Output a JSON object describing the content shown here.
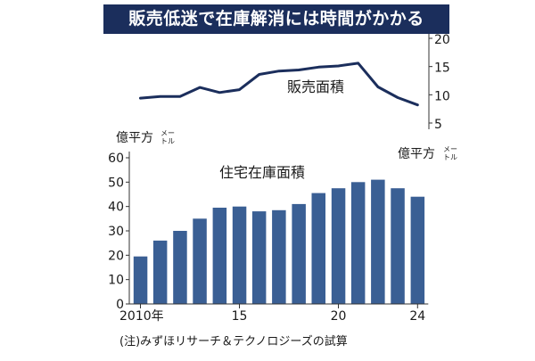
{
  "title": "販売低迷で在庫解消には時間がかかる",
  "footnote": "(注)みずほリサーチ＆テクノロジーズの試算",
  "chart_data": [
    {
      "type": "line",
      "series_name": "販売面積",
      "unit": "億平方メートル",
      "x": [
        2010,
        2011,
        2012,
        2013,
        2014,
        2015,
        2016,
        2017,
        2018,
        2019,
        2020,
        2021,
        2022,
        2023,
        2024
      ],
      "values": [
        9.4,
        9.7,
        9.7,
        11.3,
        10.4,
        10.9,
        13.6,
        14.2,
        14.4,
        14.9,
        15.1,
        15.6,
        11.4,
        9.5,
        8.2
      ],
      "ylim": [
        5,
        20
      ],
      "yticks": [
        "5",
        "10",
        "15",
        "20"
      ],
      "y_axis_side": "right",
      "unit_label": {
        "main": "億平方",
        "top": "メー",
        "bottom": "トル"
      }
    },
    {
      "type": "bar",
      "series_name": "住宅在庫面積",
      "unit": "億平方メートル",
      "x": [
        2010,
        2011,
        2012,
        2013,
        2014,
        2015,
        2016,
        2017,
        2018,
        2019,
        2020,
        2021,
        2022,
        2023,
        2024
      ],
      "values": [
        19.5,
        26,
        30,
        35,
        39.5,
        40,
        38,
        38.5,
        41,
        45.5,
        47.5,
        50,
        51,
        47.5,
        44
      ],
      "ylim": [
        0,
        60
      ],
      "yticks": [
        "0",
        "10",
        "20",
        "30",
        "40",
        "50",
        "60"
      ],
      "xtick_labels": [
        {
          "year": 2010,
          "label": "2010年"
        },
        {
          "year": 2015,
          "label": "15"
        },
        {
          "year": 2020,
          "label": "20"
        },
        {
          "year": 2024,
          "label": "24"
        }
      ],
      "bar_color": "#3a5f94",
      "y_axis_side": "left",
      "unit_label": {
        "main": "億平方",
        "top": "メー",
        "bottom": "トル"
      }
    }
  ],
  "colors": {
    "title_bg": "#1b2e5c",
    "line": "#1b2e5c",
    "bar": "#3a5f94",
    "axis": "#333333"
  }
}
